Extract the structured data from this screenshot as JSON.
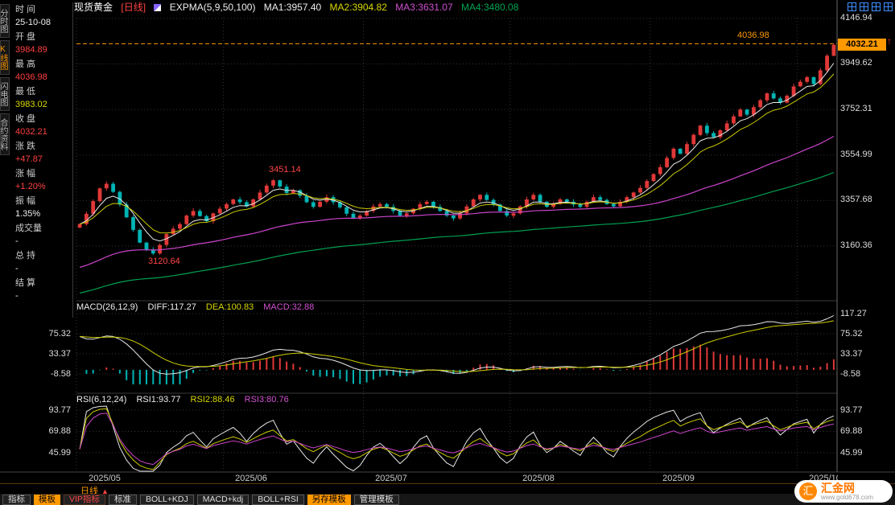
{
  "header": {
    "symbol": "现货黄金",
    "period_tag": "[日线]",
    "indicator_label": "EXPMA(5,9,50,100)",
    "ma1": "MA1:3957.40",
    "ma2": "MA2:3904.82",
    "ma3": "MA3:3631.07",
    "ma4": "MA4:3480.08"
  },
  "side_tabs": [
    {
      "label": "分时图"
    },
    {
      "label": "K线图"
    },
    {
      "label": "闪电图"
    },
    {
      "label": "合约资料"
    }
  ],
  "info_panel": {
    "rows": [
      {
        "label": "时 间",
        "value": "25-10-08"
      },
      {
        "label": "开 盘",
        "value": "3984.89"
      },
      {
        "label": "最 高",
        "value": "4036.98"
      },
      {
        "label": "最 低",
        "value": "3983.02"
      },
      {
        "label": "收 盘",
        "value": "4032.21"
      },
      {
        "label": "涨 跌",
        "value": "+47.87"
      },
      {
        "label": "涨 幅",
        "value": "+1.20%"
      },
      {
        "label": "振 幅",
        "value": "1.35%"
      },
      {
        "label": "成交量",
        "value": "-"
      },
      {
        "label": "总 持",
        "value": "-"
      },
      {
        "label": "结 算",
        "value": "-"
      }
    ]
  },
  "macd_panel": {
    "title": "MACD(26,12,9)",
    "diff": "DIFF:117.27",
    "dea": "DEA:100.83",
    "macd": "MACD:32.88"
  },
  "rsi_panel": {
    "title": "RSI(6,12,24)",
    "r1": "RSI1:93.77",
    "r2": "RSI2:88.46",
    "r3": "RSI3:80.76"
  },
  "bottom": {
    "period": "日线",
    "buttons": [
      "指标",
      "模板",
      "VIP指标",
      "标准",
      "BOLL+KDJ",
      "MACD+kdj",
      "BOLL+RSI",
      "另存模板",
      "管理模板"
    ]
  },
  "logo": {
    "glyph": "汇",
    "name": "汇金网",
    "url": "www.gold678.com"
  },
  "chart_data": {
    "type": "candlestick",
    "title": "现货黄金 日线",
    "x_labels": [
      "2025/05",
      "2025/06",
      "2025/07",
      "2025/08",
      "2025/09",
      "2025/10"
    ],
    "month_start_indices": [
      0,
      22,
      43,
      65,
      86,
      108
    ],
    "first_open": 3240,
    "closes": [
      3255,
      3300,
      3355,
      3410,
      3430,
      3395,
      3340,
      3285,
      3230,
      3175,
      3145,
      3128,
      3165,
      3212,
      3235,
      3255,
      3292,
      3312,
      3290,
      3268,
      3302,
      3322,
      3342,
      3362,
      3350,
      3332,
      3362,
      3392,
      3422,
      3445,
      3418,
      3390,
      3402,
      3378,
      3350,
      3330,
      3352,
      3372,
      3350,
      3328,
      3300,
      3282,
      3292,
      3312,
      3332,
      3342,
      3330,
      3312,
      3292,
      3302,
      3322,
      3342,
      3352,
      3330,
      3312,
      3292,
      3280,
      3302,
      3332,
      3362,
      3382,
      3360,
      3340,
      3312,
      3292,
      3302,
      3332,
      3362,
      3382,
      3352,
      3330,
      3342,
      3362,
      3352,
      3340,
      3330,
      3352,
      3372,
      3360,
      3342,
      3332,
      3352,
      3372,
      3392,
      3412,
      3442,
      3472,
      3502,
      3542,
      3582,
      3560,
      3602,
      3642,
      3682,
      3650,
      3632,
      3662,
      3692,
      3722,
      3752,
      3730,
      3762,
      3792,
      3822,
      3800,
      3782,
      3812,
      3852,
      3872,
      3892,
      3862,
      3922,
      3985,
      4032.21
    ],
    "last_candle": {
      "open": 3984.89,
      "high": 4036.98,
      "low": 3983.02,
      "close": 4032.21
    },
    "current_price": "4032.21",
    "annotations": {
      "high": "4036.98",
      "peak": "3451.14",
      "trough": "3120.64",
      "peak_index": 29,
      "trough_index": 11
    },
    "price_axis": [
      "4146.94",
      "3949.62",
      "3752.31",
      "3554.99",
      "3357.68",
      "3160.36"
    ],
    "expma_periods": [
      5,
      9,
      50,
      100
    ],
    "expma_seeds": {
      "p50": 3060,
      "p100": 2950
    },
    "macd_seeds": {
      "fast": 3310,
      "slow": 3230
    },
    "macd": {
      "params": "26,12,9",
      "diff": 117.27,
      "dea": 100.83,
      "hist": 32.88,
      "axis": [
        "117.27",
        "75.32",
        "33.37",
        "-8.58"
      ]
    },
    "rsi": {
      "params": "6,12,24",
      "rsi1": 93.77,
      "rsi2": 88.46,
      "rsi3": 80.76,
      "axis": [
        "93.77",
        "69.88",
        "45.99"
      ]
    },
    "colors": {
      "up": "#e03838",
      "down": "#00b4b4",
      "ma1": "#e8e8e8",
      "ma2": "#cccc00",
      "ma3": "#cc44cc",
      "ma4": "#00a050",
      "accent": "#ff9900",
      "grid": "#333333"
    }
  }
}
